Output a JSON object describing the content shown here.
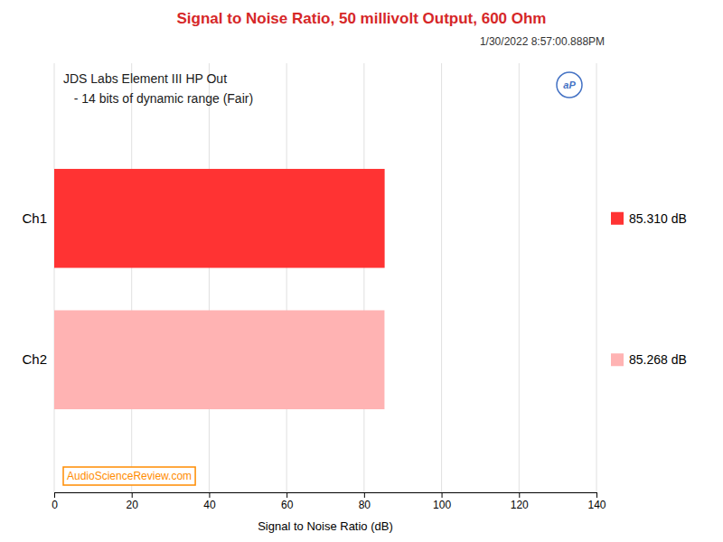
{
  "chart_data": {
    "type": "bar",
    "orientation": "horizontal",
    "title": "Signal to Noise Ratio, 50 millivolt Output, 600 Ohm",
    "subtitle": "1/30/2022 8:57:00.888PM",
    "x_label": "Signal to Noise Ratio (dB)",
    "categories": [
      "Ch1",
      "Ch2"
    ],
    "values": [
      85.31,
      85.268
    ],
    "colors": [
      "#FF3333",
      "#FFB3B3"
    ],
    "data_labels": true,
    "value_labels": [
      "85.310 dB",
      "85.268 dB"
    ],
    "xlim": [
      0,
      140
    ],
    "xticks": [
      0,
      20,
      40,
      60,
      80,
      100,
      120,
      140
    ],
    "grid": true,
    "annotations": [
      "JDS Labs Element III HP Out",
      "   - 14 bits of dynamic range (Fair)",
      "AudioScienceReview.com",
      "aP"
    ]
  }
}
